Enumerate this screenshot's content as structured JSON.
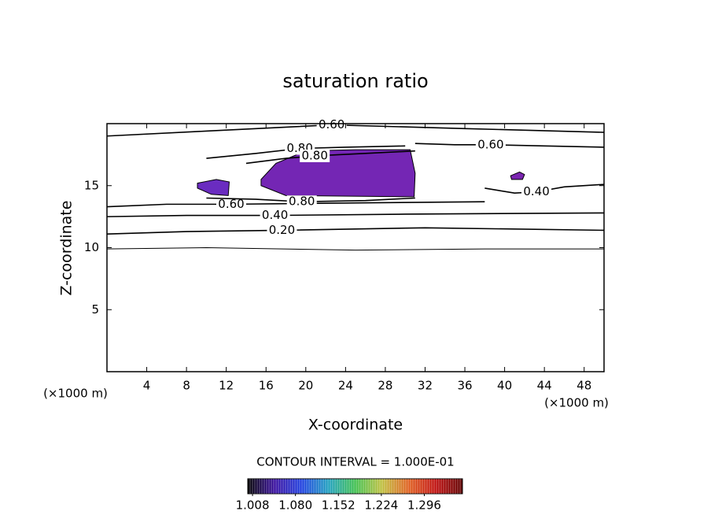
{
  "chart_data": {
    "type": "contour",
    "title": "saturation ratio",
    "x_label": "X-coordinate",
    "y_label": "Z-coordinate",
    "x_unit": "(×1000 m)",
    "y_unit": "(×1000 m)",
    "xlim": [
      0,
      50
    ],
    "ylim": [
      0,
      20
    ],
    "xticks": [
      4,
      8,
      12,
      16,
      20,
      24,
      28,
      32,
      36,
      40,
      44,
      48
    ],
    "yticks": [
      5,
      10,
      15
    ],
    "contour_interval_text": "CONTOUR INTERVAL = 1.000E-01",
    "contours": [
      {
        "level": 0.1,
        "x": [
          0,
          10,
          25,
          38,
          50
        ],
        "y": [
          9.9,
          10.0,
          9.8,
          9.9,
          9.9
        ]
      },
      {
        "level": 0.2,
        "label": "0.20",
        "x": [
          0,
          8,
          17.6,
          32,
          50
        ],
        "y": [
          11.1,
          11.3,
          11.4,
          11.6,
          11.4
        ]
      },
      {
        "level": 0.4,
        "label": "0.40",
        "x": [
          0,
          8,
          16.9,
          30,
          50
        ],
        "y": [
          12.5,
          12.6,
          12.6,
          12.7,
          12.8
        ]
      },
      {
        "level": 0.6,
        "label": "0.60",
        "x": [
          0,
          6,
          12.5,
          24,
          38
        ],
        "y": [
          13.3,
          13.5,
          13.5,
          13.6,
          13.7
        ]
      },
      {
        "level": 0.8,
        "label": "0.80",
        "x": [
          10,
          15,
          19.6,
          26,
          31
        ],
        "y": [
          14.0,
          13.9,
          13.7,
          13.8,
          14.0
        ]
      },
      {
        "level": 0.6,
        "label": "0.60",
        "x": [
          0,
          10,
          22.6,
          36,
          50
        ],
        "y": [
          19.0,
          19.4,
          19.9,
          19.6,
          19.3
        ]
      },
      {
        "level": 0.8,
        "label": "0.80",
        "x": [
          10,
          15,
          19.4,
          24,
          30
        ],
        "y": [
          17.2,
          17.6,
          18.0,
          18.1,
          18.2
        ]
      },
      {
        "level": 0.8,
        "label": "0.80",
        "x": [
          14,
          18,
          20.9,
          26,
          31
        ],
        "y": [
          16.8,
          17.2,
          17.4,
          17.6,
          17.8
        ]
      },
      {
        "level": 0.6,
        "label": "0.60",
        "x": [
          31,
          35,
          38.6,
          44,
          50
        ],
        "y": [
          18.4,
          18.3,
          18.3,
          18.2,
          18.1
        ]
      },
      {
        "level": 0.4,
        "label": "0.40",
        "x": [
          38,
          41,
          43.2,
          46,
          50
        ],
        "y": [
          14.8,
          14.4,
          14.5,
          14.9,
          15.1
        ]
      }
    ],
    "filled_regions": [
      {
        "value": 1.03,
        "color": "#7426b4",
        "x": [
          15.5,
          17,
          20,
          25,
          30.5,
          31,
          30.9,
          18,
          15.5
        ],
        "y": [
          15.5,
          16.8,
          17.8,
          17.9,
          17.9,
          16,
          14.1,
          14.2,
          15
        ]
      },
      {
        "value": 1.03,
        "color": "#6a2cc0",
        "x": [
          9.1,
          11,
          12.3,
          12.2,
          10.5,
          9.1
        ],
        "y": [
          15.2,
          15.5,
          15.3,
          14.2,
          14.3,
          14.8
        ]
      },
      {
        "value": 1.03,
        "color": "#7a24b0",
        "x": [
          40.6,
          41.5,
          42,
          41.8,
          40.7
        ],
        "y": [
          15.8,
          16.1,
          15.9,
          15.5,
          15.5
        ]
      }
    ],
    "colorbar": {
      "lim": [
        1.0,
        1.36
      ],
      "colormap": [
        "#000000",
        "#3a10a0",
        "#2040e0",
        "#20a0c0",
        "#40c050",
        "#c0c040",
        "#e06020",
        "#c01010",
        "#600000"
      ],
      "ticks": [
        {
          "value": 1.008,
          "label": "1.008"
        },
        {
          "value": 1.08,
          "label": "1.080"
        },
        {
          "value": 1.152,
          "label": "1.152"
        },
        {
          "value": 1.224,
          "label": "1.224"
        },
        {
          "value": 1.296,
          "label": "1.296"
        }
      ]
    }
  }
}
